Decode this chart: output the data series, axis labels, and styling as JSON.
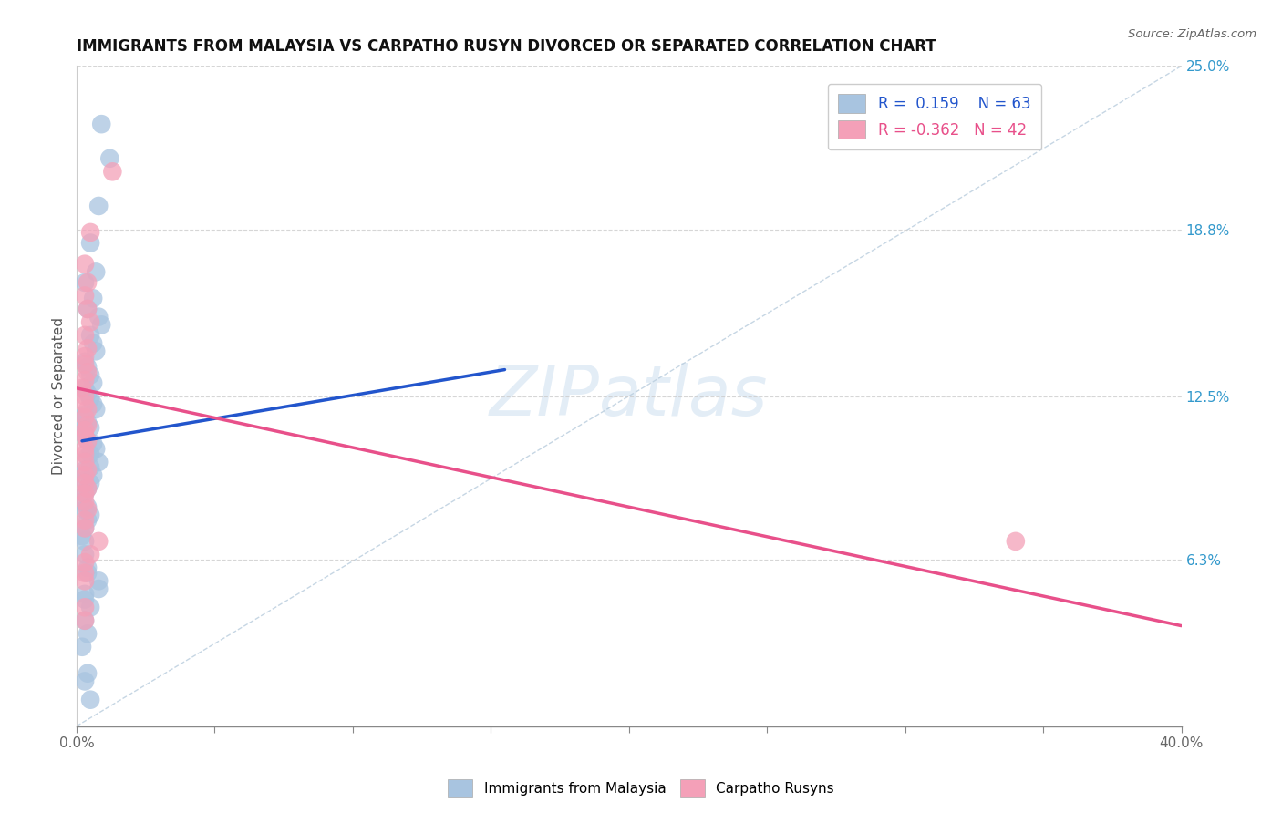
{
  "title": "IMMIGRANTS FROM MALAYSIA VS CARPATHO RUSYN DIVORCED OR SEPARATED CORRELATION CHART",
  "source": "Source: ZipAtlas.com",
  "ylabel": "Divorced or Separated",
  "xlim": [
    0,
    0.4
  ],
  "ylim": [
    0,
    0.25
  ],
  "xtick_values": [
    0.0,
    0.05,
    0.1,
    0.15,
    0.2,
    0.25,
    0.3,
    0.35,
    0.4
  ],
  "xtick_labels": [
    "0.0%",
    "",
    "",
    "",
    "",
    "",
    "",
    "",
    "40.0%"
  ],
  "ytick_right_values": [
    0.0,
    0.063,
    0.125,
    0.188,
    0.25
  ],
  "ytick_right_labels": [
    "",
    "6.3%",
    "12.5%",
    "18.8%",
    "25.0%"
  ],
  "legend_r1": "R =  0.159",
  "legend_n1": "N = 63",
  "legend_r2": "R = -0.362",
  "legend_n2": "N = 42",
  "blue_color": "#a8c4e0",
  "pink_color": "#f4a0b8",
  "blue_line_color": "#2255cc",
  "pink_line_color": "#e8508a",
  "watermark": "ZIPatlas",
  "blue_scatter_x": [
    0.009,
    0.012,
    0.008,
    0.005,
    0.007,
    0.003,
    0.006,
    0.004,
    0.008,
    0.009,
    0.005,
    0.006,
    0.007,
    0.003,
    0.004,
    0.005,
    0.006,
    0.003,
    0.004,
    0.005,
    0.006,
    0.007,
    0.003,
    0.002,
    0.004,
    0.005,
    0.003,
    0.003,
    0.004,
    0.006,
    0.007,
    0.005,
    0.004,
    0.008,
    0.005,
    0.003,
    0.006,
    0.003,
    0.005,
    0.004,
    0.003,
    0.002,
    0.004,
    0.003,
    0.005,
    0.004,
    0.003,
    0.002,
    0.003,
    0.003,
    0.004,
    0.004,
    0.008,
    0.008,
    0.003,
    0.003,
    0.005,
    0.003,
    0.004,
    0.002,
    0.004,
    0.003,
    0.005
  ],
  "blue_scatter_y": [
    0.228,
    0.215,
    0.197,
    0.183,
    0.172,
    0.168,
    0.162,
    0.158,
    0.155,
    0.152,
    0.148,
    0.145,
    0.142,
    0.138,
    0.136,
    0.133,
    0.13,
    0.128,
    0.126,
    0.124,
    0.122,
    0.12,
    0.118,
    0.116,
    0.115,
    0.113,
    0.112,
    0.11,
    0.108,
    0.107,
    0.105,
    0.103,
    0.102,
    0.1,
    0.098,
    0.097,
    0.095,
    0.093,
    0.092,
    0.09,
    0.088,
    0.085,
    0.083,
    0.082,
    0.08,
    0.078,
    0.075,
    0.072,
    0.07,
    0.065,
    0.06,
    0.058,
    0.055,
    0.052,
    0.05,
    0.048,
    0.045,
    0.04,
    0.035,
    0.03,
    0.02,
    0.017,
    0.01
  ],
  "pink_scatter_x": [
    0.013,
    0.005,
    0.003,
    0.004,
    0.003,
    0.004,
    0.005,
    0.003,
    0.004,
    0.003,
    0.003,
    0.004,
    0.003,
    0.002,
    0.003,
    0.003,
    0.004,
    0.003,
    0.004,
    0.003,
    0.003,
    0.004,
    0.003,
    0.003,
    0.003,
    0.004,
    0.003,
    0.003,
    0.004,
    0.003,
    0.003,
    0.004,
    0.003,
    0.003,
    0.008,
    0.005,
    0.003,
    0.003,
    0.003,
    0.003,
    0.34,
    0.003
  ],
  "pink_scatter_y": [
    0.21,
    0.187,
    0.175,
    0.168,
    0.163,
    0.158,
    0.153,
    0.148,
    0.143,
    0.14,
    0.137,
    0.134,
    0.131,
    0.128,
    0.125,
    0.122,
    0.12,
    0.117,
    0.114,
    0.112,
    0.11,
    0.108,
    0.105,
    0.103,
    0.1,
    0.097,
    0.095,
    0.092,
    0.09,
    0.088,
    0.085,
    0.082,
    0.078,
    0.075,
    0.07,
    0.065,
    0.062,
    0.058,
    0.055,
    0.045,
    0.07,
    0.04
  ],
  "blue_line_x": [
    0.002,
    0.155
  ],
  "blue_line_y": [
    0.108,
    0.135
  ],
  "pink_line_x": [
    0.0,
    0.4
  ],
  "pink_line_y": [
    0.128,
    0.038
  ],
  "diag_line_x": [
    0.0,
    0.4
  ],
  "diag_line_y": [
    0.0,
    0.25
  ],
  "title_fontsize": 12,
  "axis_fontsize": 11,
  "tick_fontsize": 11
}
